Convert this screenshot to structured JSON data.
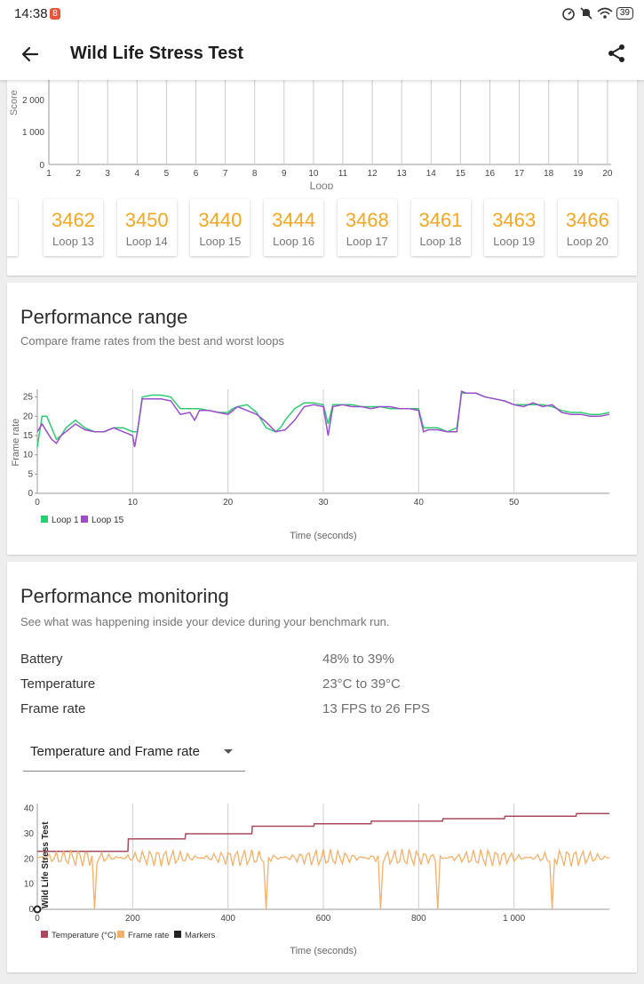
{
  "status_bar": {
    "time": "14:38",
    "notification_badge": "8",
    "battery": "39"
  },
  "app_bar": {
    "title": "Wild Life Stress Test"
  },
  "score_chart": {
    "ylabel": "Score",
    "xlabel": "Loop",
    "y_ticks": [
      "2 000",
      "1 000",
      "0"
    ],
    "x_ticks": [
      "1",
      "2",
      "3",
      "4",
      "5",
      "6",
      "7",
      "8",
      "9",
      "10",
      "11",
      "12",
      "13",
      "14",
      "15",
      "16",
      "17",
      "18",
      "19",
      "20"
    ]
  },
  "loop_tiles": [
    {
      "score": "3462",
      "label": "Loop 13"
    },
    {
      "score": "3450",
      "label": "Loop 14"
    },
    {
      "score": "3440",
      "label": "Loop 15"
    },
    {
      "score": "3444",
      "label": "Loop 16"
    },
    {
      "score": "3468",
      "label": "Loop 17"
    },
    {
      "score": "3461",
      "label": "Loop 18"
    },
    {
      "score": "3463",
      "label": "Loop 19"
    },
    {
      "score": "3466",
      "label": "Loop 20"
    }
  ],
  "performance_range": {
    "title": "Performance range",
    "subtitle": "Compare frame rates from the best and worst loops"
  },
  "performance_monitoring": {
    "title": "Performance monitoring",
    "subtitle": "See what was happening inside your device during your benchmark run.",
    "rows": [
      {
        "label": "Battery",
        "value": "48% to 39%"
      },
      {
        "label": "Temperature",
        "value": "23°C to 39°C"
      },
      {
        "label": "Frame rate",
        "value": "13 FPS to 26 FPS"
      }
    ],
    "dropdown_value": "Temperature and Frame rate"
  },
  "colors": {
    "accent": "#f5a623",
    "loop1": "#2ecc71",
    "loop15": "#9b4dca",
    "temperature": "#a84a5c",
    "framerate": "#f5b06b",
    "markers": "#222222"
  },
  "chart_data": [
    {
      "type": "bar",
      "xlabel": "Loop",
      "ylabel": "Score",
      "categories": [
        "1",
        "2",
        "3",
        "4",
        "5",
        "6",
        "7",
        "8",
        "9",
        "10",
        "11",
        "12",
        "13",
        "14",
        "15",
        "16",
        "17",
        "18",
        "19",
        "20"
      ],
      "ylim": [
        0,
        2500
      ],
      "grid": true
    },
    {
      "type": "line",
      "xlabel": "Time (seconds)",
      "ylabel": "Frame rate",
      "xlim": [
        0,
        60
      ],
      "ylim": [
        0,
        27
      ],
      "x_ticks": [
        "0",
        "10",
        "20",
        "30",
        "40",
        "50"
      ],
      "y_ticks": [
        "0",
        "5",
        "10",
        "15",
        "20",
        "25"
      ],
      "legend": "bottom-left",
      "series": [
        {
          "name": "Loop 1",
          "x": [
            0,
            0.5,
            1,
            1.5,
            2,
            2.5,
            3,
            3.5,
            4,
            5,
            6,
            7,
            8,
            9,
            10,
            10.5,
            11,
            12,
            13,
            14,
            15,
            16,
            17,
            18,
            19,
            20,
            20.5,
            21,
            22,
            23,
            24,
            25,
            25.5,
            26,
            27,
            28,
            29,
            30,
            30.5,
            31,
            32,
            33,
            34,
            35,
            36,
            37,
            38,
            39,
            40,
            40.5,
            41,
            42,
            43,
            44,
            44.5,
            45,
            46,
            47,
            48,
            49,
            50,
            51,
            52,
            53,
            54,
            55,
            56,
            57,
            58,
            59,
            60
          ],
          "y": [
            12,
            20,
            20,
            17,
            14,
            15,
            17,
            18,
            19,
            17,
            16,
            16,
            17,
            17,
            16,
            16,
            25,
            25.5,
            25.5,
            25,
            22,
            22,
            22,
            21.5,
            21,
            21,
            22,
            22.5,
            23,
            21,
            17,
            16,
            17,
            19,
            22,
            23.5,
            23.5,
            23,
            18,
            23,
            23,
            23,
            22.5,
            22.5,
            22.5,
            22,
            22,
            22,
            22,
            17,
            17,
            17,
            16,
            17,
            26,
            26,
            26,
            25,
            24.5,
            24,
            23,
            23,
            23,
            23,
            22.5,
            21.5,
            21,
            21,
            20.5,
            20.5,
            21
          ]
        },
        {
          "name": "Loop 15",
          "x": [
            0,
            0.5,
            1,
            1.5,
            2,
            2.5,
            3,
            3.5,
            4,
            5,
            6,
            7,
            8,
            9,
            10,
            10.2,
            10.5,
            11,
            12,
            13,
            14,
            15,
            16,
            16.5,
            17,
            18,
            19,
            20,
            21,
            22,
            23,
            24,
            25,
            26,
            27,
            28,
            29,
            30,
            30.5,
            31,
            32,
            33,
            34,
            35,
            36,
            37,
            38,
            39,
            40,
            40.5,
            41,
            42,
            43,
            44,
            44.5,
            45,
            46,
            47,
            48,
            49,
            50,
            51,
            52,
            53,
            54,
            55,
            56,
            57,
            58,
            59,
            60
          ],
          "y": [
            16,
            18,
            16,
            14,
            13,
            15,
            16,
            17,
            18,
            16.5,
            16,
            16,
            17,
            16,
            15,
            12,
            16,
            24.5,
            24.5,
            24.5,
            24,
            20.5,
            21,
            19,
            21.5,
            21.5,
            21,
            20.5,
            22.5,
            21.5,
            20.5,
            18.5,
            16,
            16.5,
            19,
            22.5,
            23,
            22.5,
            15,
            22.5,
            23,
            22.5,
            22.5,
            22,
            22.5,
            22.5,
            22,
            22,
            21.5,
            16,
            16.5,
            16.5,
            16,
            16,
            26.5,
            26,
            26,
            25,
            24.5,
            24,
            23,
            22.5,
            23.5,
            22.5,
            23,
            21,
            20.5,
            20.5,
            20,
            20,
            20.5
          ]
        }
      ]
    },
    {
      "type": "line",
      "xlabel": "Time (seconds)",
      "title": "Wild Life Stress Test",
      "xlim": [
        0,
        1200
      ],
      "ylim": [
        0,
        42
      ],
      "x_ticks": [
        "0",
        "200",
        "400",
        "600",
        "800",
        "1 000"
      ],
      "y_ticks": [
        "0",
        "10",
        "20",
        "30",
        "40"
      ],
      "legend": "bottom-left",
      "series": [
        {
          "name": "Temperature (°C)",
          "x": [
            0,
            190,
            191,
            310,
            311,
            450,
            451,
            580,
            581,
            700,
            701,
            850,
            851,
            980,
            981,
            1130,
            1131,
            1200
          ],
          "y": [
            23,
            23,
            28,
            28,
            30,
            30,
            33,
            33,
            34,
            34,
            35,
            35,
            36,
            36,
            37,
            37,
            38,
            38
          ]
        },
        {
          "name": "Frame rate",
          "x": [
            0,
            120,
            122,
            124,
            480,
            482,
            484,
            720,
            722,
            724,
            840,
            842,
            844,
            1080,
            1082,
            1084,
            1200
          ],
          "y": [
            21,
            21,
            0,
            21,
            21,
            0,
            21,
            21,
            0,
            21,
            21,
            0,
            21,
            21,
            0,
            21,
            21
          ]
        },
        {
          "name": "Markers",
          "x": [
            0
          ],
          "y": [
            0
          ]
        }
      ]
    }
  ]
}
